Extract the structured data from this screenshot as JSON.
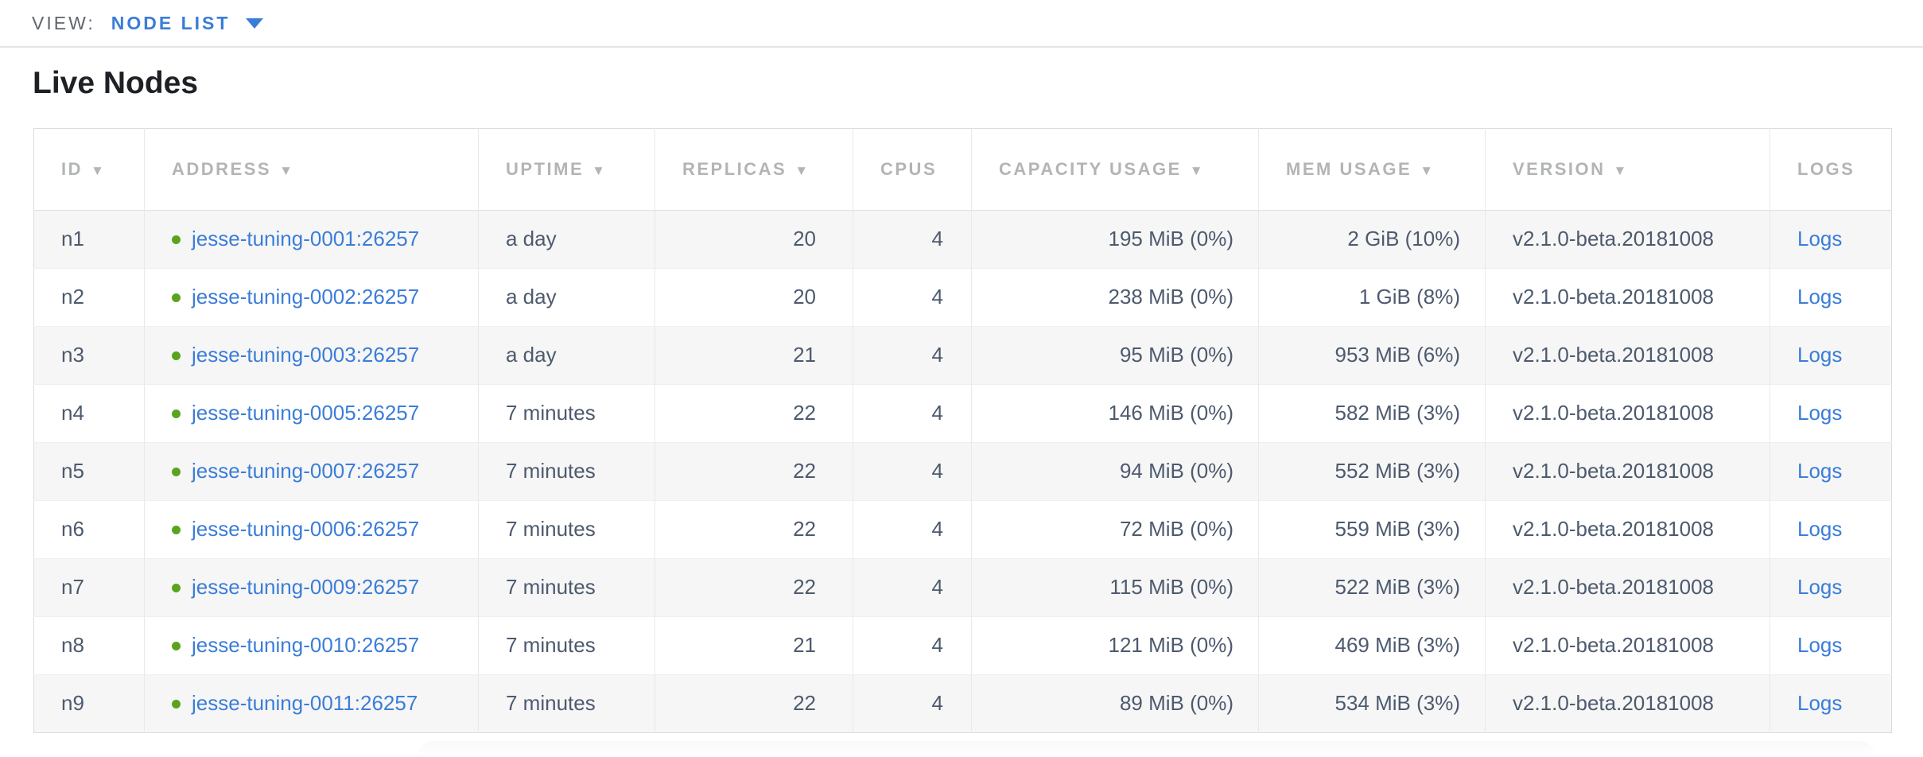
{
  "view_bar": {
    "label": "VIEW:",
    "selected_view": "NODE LIST"
  },
  "page_title": "Live Nodes",
  "table": {
    "sort_indicator": "▼",
    "columns": [
      {
        "key": "id",
        "label": "ID",
        "sorted": true
      },
      {
        "key": "address",
        "label": "ADDRESS",
        "sorted": true
      },
      {
        "key": "uptime",
        "label": "UPTIME",
        "sorted": true
      },
      {
        "key": "replicas",
        "label": "REPLICAS",
        "sorted": true
      },
      {
        "key": "cpus",
        "label": "CPUS",
        "sorted": false
      },
      {
        "key": "capacity_usage",
        "label": "CAPACITY USAGE",
        "sorted": true
      },
      {
        "key": "mem_usage",
        "label": "MEM USAGE",
        "sorted": true
      },
      {
        "key": "version",
        "label": "VERSION",
        "sorted": true
      },
      {
        "key": "logs",
        "label": "LOGS",
        "sorted": false
      }
    ],
    "rows": [
      {
        "id": "n1",
        "status": "live",
        "address": "jesse-tuning-0001:26257",
        "uptime": "a day",
        "replicas": "20",
        "cpus": "4",
        "capacity_usage": "195 MiB (0%)",
        "mem_usage": "2 GiB (10%)",
        "version": "v2.1.0-beta.20181008",
        "logs": "Logs"
      },
      {
        "id": "n2",
        "status": "live",
        "address": "jesse-tuning-0002:26257",
        "uptime": "a day",
        "replicas": "20",
        "cpus": "4",
        "capacity_usage": "238 MiB (0%)",
        "mem_usage": "1 GiB (8%)",
        "version": "v2.1.0-beta.20181008",
        "logs": "Logs"
      },
      {
        "id": "n3",
        "status": "live",
        "address": "jesse-tuning-0003:26257",
        "uptime": "a day",
        "replicas": "21",
        "cpus": "4",
        "capacity_usage": "95 MiB (0%)",
        "mem_usage": "953 MiB (6%)",
        "version": "v2.1.0-beta.20181008",
        "logs": "Logs"
      },
      {
        "id": "n4",
        "status": "live",
        "address": "jesse-tuning-0005:26257",
        "uptime": "7 minutes",
        "replicas": "22",
        "cpus": "4",
        "capacity_usage": "146 MiB (0%)",
        "mem_usage": "582 MiB (3%)",
        "version": "v2.1.0-beta.20181008",
        "logs": "Logs"
      },
      {
        "id": "n5",
        "status": "live",
        "address": "jesse-tuning-0007:26257",
        "uptime": "7 minutes",
        "replicas": "22",
        "cpus": "4",
        "capacity_usage": "94 MiB (0%)",
        "mem_usage": "552 MiB (3%)",
        "version": "v2.1.0-beta.20181008",
        "logs": "Logs"
      },
      {
        "id": "n6",
        "status": "live",
        "address": "jesse-tuning-0006:26257",
        "uptime": "7 minutes",
        "replicas": "22",
        "cpus": "4",
        "capacity_usage": "72 MiB (0%)",
        "mem_usage": "559 MiB (3%)",
        "version": "v2.1.0-beta.20181008",
        "logs": "Logs"
      },
      {
        "id": "n7",
        "status": "live",
        "address": "jesse-tuning-0009:26257",
        "uptime": "7 minutes",
        "replicas": "22",
        "cpus": "4",
        "capacity_usage": "115 MiB (0%)",
        "mem_usage": "522 MiB (3%)",
        "version": "v2.1.0-beta.20181008",
        "logs": "Logs"
      },
      {
        "id": "n8",
        "status": "live",
        "address": "jesse-tuning-0010:26257",
        "uptime": "7 minutes",
        "replicas": "21",
        "cpus": "4",
        "capacity_usage": "121 MiB (0%)",
        "mem_usage": "469 MiB (3%)",
        "version": "v2.1.0-beta.20181008",
        "logs": "Logs"
      },
      {
        "id": "n9",
        "status": "live",
        "address": "jesse-tuning-0011:26257",
        "uptime": "7 minutes",
        "replicas": "22",
        "cpus": "4",
        "capacity_usage": "89 MiB (0%)",
        "mem_usage": "534 MiB (3%)",
        "version": "v2.1.0-beta.20181008",
        "logs": "Logs"
      }
    ]
  },
  "colors": {
    "accent_link": "#3b7dd8",
    "live_dot": "#5ba31e",
    "header_text": "#b2b4b6",
    "body_text": "#4d5a6e"
  }
}
